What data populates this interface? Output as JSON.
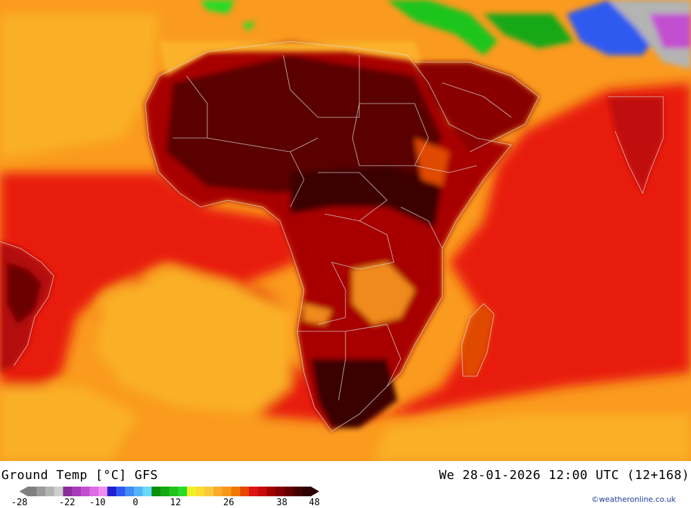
{
  "title": {
    "parameter": "Ground Temp [°C] GFS",
    "valid_time": "We 28-01-2026 12:00 UTC (12+168)"
  },
  "legend": {
    "ticks": [
      "-28",
      "-22",
      "-10",
      "0",
      "12",
      "26",
      "38",
      "48"
    ],
    "colors": [
      "#7f7f7f",
      "#9a9a9a",
      "#b4b4b4",
      "#cfcfcf",
      "#8a2d9a",
      "#a63ab8",
      "#c24fd0",
      "#de6ae6",
      "#f08cf0",
      "#2020d0",
      "#2e5af0",
      "#3f8cf5",
      "#55b4f7",
      "#6ad8fa",
      "#0a8f0a",
      "#14a814",
      "#1ec41e",
      "#28dc28",
      "#f0f028",
      "#fadc32",
      "#fac83c",
      "#faaa2d",
      "#fa9619",
      "#f07800",
      "#e64600",
      "#dc1414",
      "#c80a0a",
      "#a00000",
      "#820000",
      "#640000",
      "#460000",
      "#2c0000"
    ]
  },
  "credit": "©weatheronline.co.uk"
}
